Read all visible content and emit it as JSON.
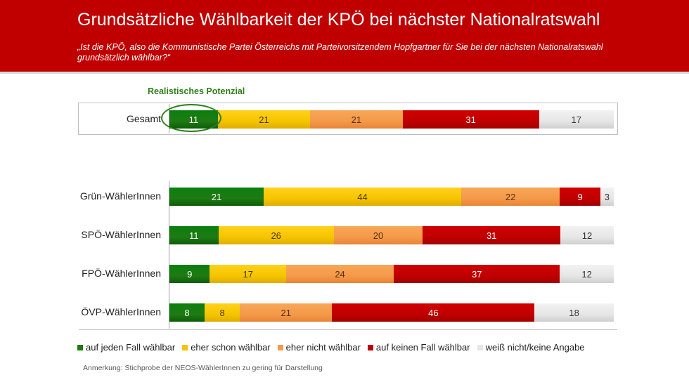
{
  "header": {
    "title": "Grundsätzliche Wählbarkeit der KPÖ bei nächster Nationalratswahl",
    "question": "„Ist die KPÖ, also die Kommunistische Partei Österreichs mit Parteivorsitzendem Hopfgartner für Sie bei der nächsten Nationalratswahl grundsätzlich wählbar?“"
  },
  "potential_label": "Realistisches Potenzial",
  "colors": {
    "header_bg": "#c00000",
    "green": "#1f7a13",
    "yellow": "#f5c400",
    "orange": "#f39a4a",
    "red": "#c00000",
    "grey": "#e6e6e6"
  },
  "chart_data": {
    "type": "bar",
    "orientation": "horizontal-stacked-100",
    "categories": [
      "Gesamt",
      "Grün-WählerInnen",
      "SPÖ-WählerInnen",
      "FPÖ-WählerInnen",
      "ÖVP-WählerInnen"
    ],
    "series": [
      {
        "name": "auf jeden Fall wählbar",
        "color": "#1f7a13",
        "values": [
          11,
          21,
          11,
          9,
          8
        ]
      },
      {
        "name": "eher schon wählbar",
        "color": "#f5c400",
        "values": [
          21,
          44,
          26,
          17,
          8
        ]
      },
      {
        "name": "eher nicht wählbar",
        "color": "#f39a4a",
        "values": [
          21,
          22,
          20,
          24,
          21
        ]
      },
      {
        "name": "auf keinen Fall wählbar",
        "color": "#c00000",
        "values": [
          31,
          9,
          31,
          37,
          46
        ]
      },
      {
        "name": "weiß nicht/keine Angabe",
        "color": "#e6e6e6",
        "values": [
          17,
          3,
          12,
          12,
          18
        ]
      }
    ],
    "title": "Grundsätzliche Wählbarkeit der KPÖ bei nächster Nationalratswahl",
    "xlabel": "",
    "ylabel": "",
    "xlim": [
      0,
      100
    ],
    "legend": "bottom"
  },
  "note": "Anmerkung: Stichprobe der NEOS-WählerInnen zu gering für Darstellung"
}
